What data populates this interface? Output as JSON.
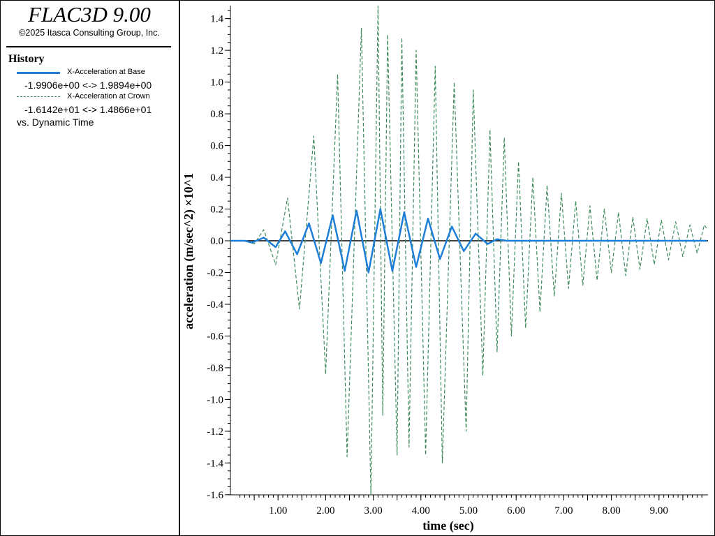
{
  "app": {
    "title": "FLAC3D 9.00",
    "copyright": "©2025 Itasca Consulting Group, Inc."
  },
  "legend": {
    "heading": "History",
    "series": [
      {
        "name": "X-Acceleration at Base",
        "range": "-1.9906e+00 <->  1.9894e+00",
        "color": "#1e7fd8",
        "style": "solid"
      },
      {
        "name": "X-Acceleration at Crown",
        "range": "-1.6142e+01 <->  1.4866e+01",
        "color": "#3f8a5c",
        "style": "dashed"
      }
    ],
    "vs_label": "vs. Dynamic Time"
  },
  "chart_data": {
    "type": "line",
    "xlabel": "time (sec)",
    "ylabel": "acceleration (m/sec^2) ×10^1",
    "xlim": [
      0,
      10
    ],
    "ylim": [
      -1.6,
      1.5
    ],
    "x_ticks": [
      1.0,
      2.0,
      3.0,
      4.0,
      5.0,
      6.0,
      7.0,
      8.0,
      9.0
    ],
    "x_tick_labels": [
      "1.00",
      "2.00",
      "3.00",
      "4.00",
      "5.00",
      "6.00",
      "7.00",
      "8.00",
      "9.00"
    ],
    "y_ticks": [
      1.4,
      1.2,
      1.0,
      0.8,
      0.6,
      0.4,
      0.2,
      0.0,
      -0.2,
      -0.4,
      -0.6,
      -0.8,
      -1.0,
      -1.2,
      -1.4,
      -1.6
    ],
    "y_tick_labels": [
      "1.4",
      "1.2",
      "1.0",
      "0.8",
      "0.6",
      "0.4",
      "0.2",
      "0.0",
      "-0.2",
      "-0.4",
      "-0.6",
      "-0.8",
      "-1.0",
      "-1.2",
      "-1.4",
      "-1.6"
    ],
    "grid": false,
    "zero_line": true,
    "series": [
      {
        "name": "X-Acceleration at Base",
        "color": "#1e7fd8",
        "style": "solid",
        "x": [
          0.0,
          0.3,
          0.45,
          0.7,
          0.95,
          1.15,
          1.4,
          1.65,
          1.9,
          2.15,
          2.4,
          2.65,
          2.9,
          3.15,
          3.4,
          3.65,
          3.9,
          4.15,
          4.4,
          4.65,
          4.9,
          5.15,
          5.4,
          5.6,
          5.8,
          6.0,
          10.0
        ],
        "y": [
          0.0,
          0.0,
          -0.012,
          0.02,
          -0.04,
          0.06,
          -0.085,
          0.11,
          -0.14,
          0.16,
          -0.19,
          0.19,
          -0.2,
          0.2,
          -0.19,
          0.18,
          -0.165,
          0.14,
          -0.115,
          0.09,
          -0.065,
          0.045,
          -0.02,
          0.01,
          0.0,
          0.0,
          0.0
        ]
      },
      {
        "name": "X-Acceleration at Crown",
        "color": "#3f8a5c",
        "style": "dashed",
        "x": [
          0.0,
          0.3,
          0.5,
          0.7,
          0.95,
          1.2,
          1.45,
          1.75,
          2.0,
          2.25,
          2.45,
          2.75,
          2.95,
          3.1,
          3.2,
          3.3,
          3.5,
          3.6,
          3.75,
          3.9,
          4.1,
          4.3,
          4.45,
          4.7,
          4.95,
          5.1,
          5.3,
          5.45,
          5.6,
          5.75,
          5.9,
          6.05,
          6.2,
          6.35,
          6.5,
          6.65,
          6.8,
          6.95,
          7.1,
          7.25,
          7.4,
          7.55,
          7.7,
          7.85,
          8.0,
          8.15,
          8.3,
          8.45,
          8.6,
          8.75,
          8.9,
          9.05,
          9.2,
          9.35,
          9.5,
          9.65,
          9.8,
          9.95,
          10.0
        ],
        "y": [
          0.0,
          0.0,
          -0.02,
          0.07,
          -0.15,
          0.27,
          -0.43,
          0.66,
          -0.84,
          1.05,
          -1.36,
          1.34,
          -1.6,
          1.48,
          -1.1,
          1.3,
          -1.35,
          1.28,
          -1.3,
          1.2,
          -1.35,
          1.1,
          -1.4,
          1.0,
          -1.2,
          0.95,
          -0.85,
          0.7,
          -0.7,
          0.65,
          -0.6,
          0.5,
          -0.55,
          0.4,
          -0.45,
          0.35,
          -0.35,
          0.3,
          -0.3,
          0.25,
          -0.28,
          0.22,
          -0.25,
          0.2,
          -0.2,
          0.18,
          -0.22,
          0.15,
          -0.18,
          0.14,
          -0.15,
          0.13,
          -0.12,
          0.12,
          -0.1,
          0.1,
          -0.08,
          0.1,
          0.08
        ]
      }
    ]
  }
}
